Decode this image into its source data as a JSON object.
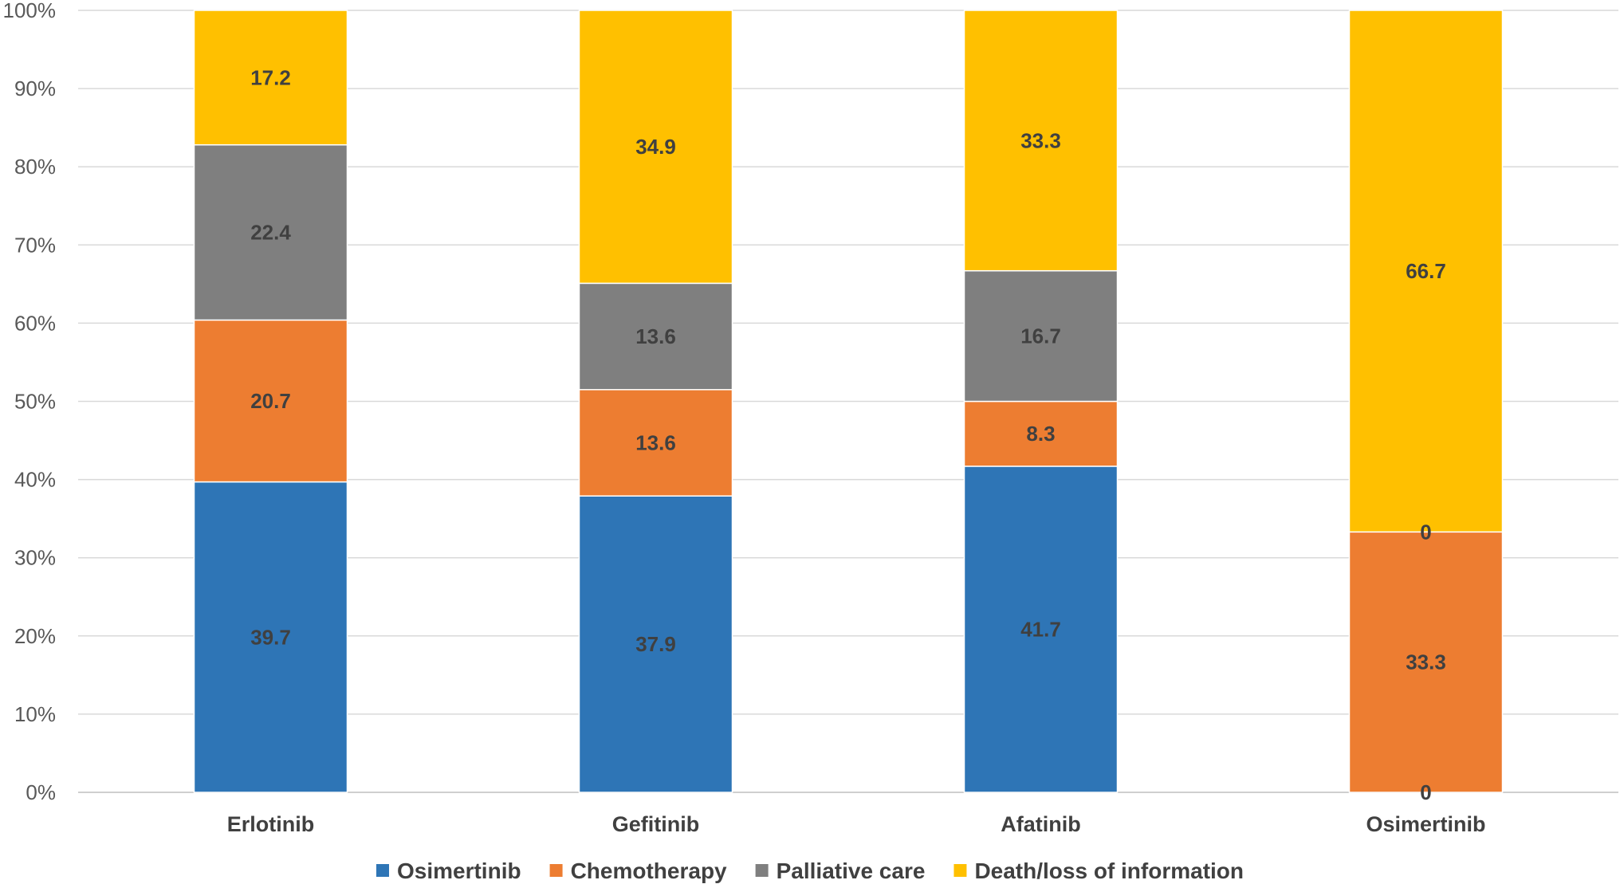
{
  "chart_data": {
    "type": "bar",
    "stacked": true,
    "title": "",
    "xlabel": "",
    "ylabel": "",
    "ylim": [
      0,
      100
    ],
    "y_ticks": [
      "0%",
      "10%",
      "20%",
      "30%",
      "40%",
      "50%",
      "60%",
      "70%",
      "80%",
      "90%",
      "100%"
    ],
    "categories": [
      "Erlotinib",
      "Gefitinib",
      "Afatinib",
      "Osimertinib"
    ],
    "series": [
      {
        "name": "Osimertinib",
        "color": "#2E75B6",
        "values": [
          39.7,
          37.9,
          41.7,
          0
        ],
        "labels": [
          "39.7",
          "37.9",
          "41.7",
          "0"
        ]
      },
      {
        "name": "Chemotherapy",
        "color": "#ED7D31",
        "values": [
          20.7,
          13.6,
          8.3,
          33.3
        ],
        "labels": [
          "20.7",
          "13.6",
          "8.3",
          "33.3"
        ]
      },
      {
        "name": "Palliative care",
        "color": "#7F7F7F",
        "values": [
          22.4,
          13.6,
          16.7,
          0
        ],
        "labels": [
          "22.4",
          "13.6",
          "16.7",
          "0"
        ]
      },
      {
        "name": "Death/loss of information",
        "color": "#FFC000",
        "values": [
          17.2,
          34.9,
          33.3,
          66.7
        ],
        "labels": [
          "17.2",
          "34.9",
          "33.3",
          "66.7"
        ]
      }
    ],
    "legend_position": "bottom",
    "grid": true
  }
}
